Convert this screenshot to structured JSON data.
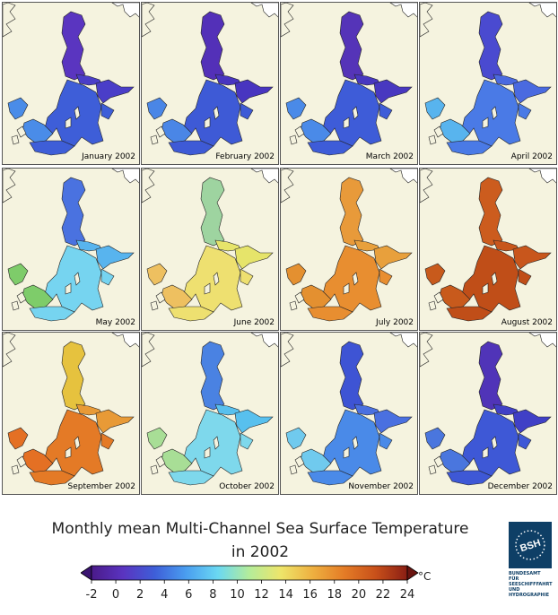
{
  "panels": [
    {
      "label": "January 2002",
      "colors": {
        "north": "#5a35c0",
        "gulf": "#4a3ec8",
        "main": "#3e5ed8",
        "south": "#4a8ce8"
      }
    },
    {
      "label": "February 2002",
      "colors": {
        "north": "#5330b8",
        "gulf": "#4835c0",
        "main": "#3e5ad6",
        "south": "#4a86e6"
      }
    },
    {
      "label": "March 2002",
      "colors": {
        "north": "#5534b8",
        "gulf": "#4838c0",
        "main": "#3e5cd8",
        "south": "#4a8ae8"
      }
    },
    {
      "label": "April 2002",
      "colors": {
        "north": "#4a4ad0",
        "gulf": "#4a6ae0",
        "main": "#4a7ae6",
        "south": "#58b4ee"
      }
    },
    {
      "label": "May 2002",
      "colors": {
        "north": "#4a72e0",
        "gulf": "#58b4ee",
        "main": "#76d4f0",
        "south": "#7ecc6a"
      }
    },
    {
      "label": "June 2002",
      "colors": {
        "north": "#9ed4a0",
        "gulf": "#e6e46a",
        "main": "#eee070",
        "south": "#eec060"
      }
    },
    {
      "label": "July 2002",
      "colors": {
        "north": "#e89a3a",
        "gulf": "#e8a03c",
        "main": "#e88e30",
        "south": "#e49030"
      }
    },
    {
      "label": "August 2002",
      "colors": {
        "north": "#cc5c1e",
        "gulf": "#c8561c",
        "main": "#c04e18",
        "south": "#c85a1c"
      }
    },
    {
      "label": "September 2002",
      "colors": {
        "north": "#e6c23e",
        "gulf": "#e89a36",
        "main": "#e47a26",
        "south": "#e47024"
      }
    },
    {
      "label": "October 2002",
      "colors": {
        "north": "#4a82e2",
        "gulf": "#58c0ee",
        "main": "#7ed8ec",
        "south": "#a8de96"
      }
    },
    {
      "label": "November 2002",
      "colors": {
        "north": "#3e54d4",
        "gulf": "#4a70e0",
        "main": "#4a8ae8",
        "south": "#70caee"
      }
    },
    {
      "label": "December 2002",
      "colors": {
        "north": "#5034b8",
        "gulf": "#4040c6",
        "main": "#3e58d6",
        "south": "#4a76de"
      }
    }
  ],
  "title_line1": "Monthly mean Multi-Channel Sea Surface Temperature",
  "title_line2": "in 2002",
  "colorbar": {
    "ticks": [
      "-2",
      "0",
      "2",
      "4",
      "6",
      "8",
      "10",
      "12",
      "14",
      "16",
      "18",
      "20",
      "22",
      "24"
    ],
    "unit": "°C",
    "stops": [
      "#4a1a8a",
      "#5a34c0",
      "#3e5ed8",
      "#4a9ef0",
      "#6ad8f2",
      "#b4ec9a",
      "#eee56a",
      "#eeb040",
      "#e47c26",
      "#c8501a",
      "#8a1e14"
    ]
  },
  "logo": {
    "mark": "BSH",
    "lines": [
      "BUNDESAMT FÜR",
      "SEESCHIFFFAHRT",
      "UND",
      "HYDROGRAPHIE"
    ]
  }
}
